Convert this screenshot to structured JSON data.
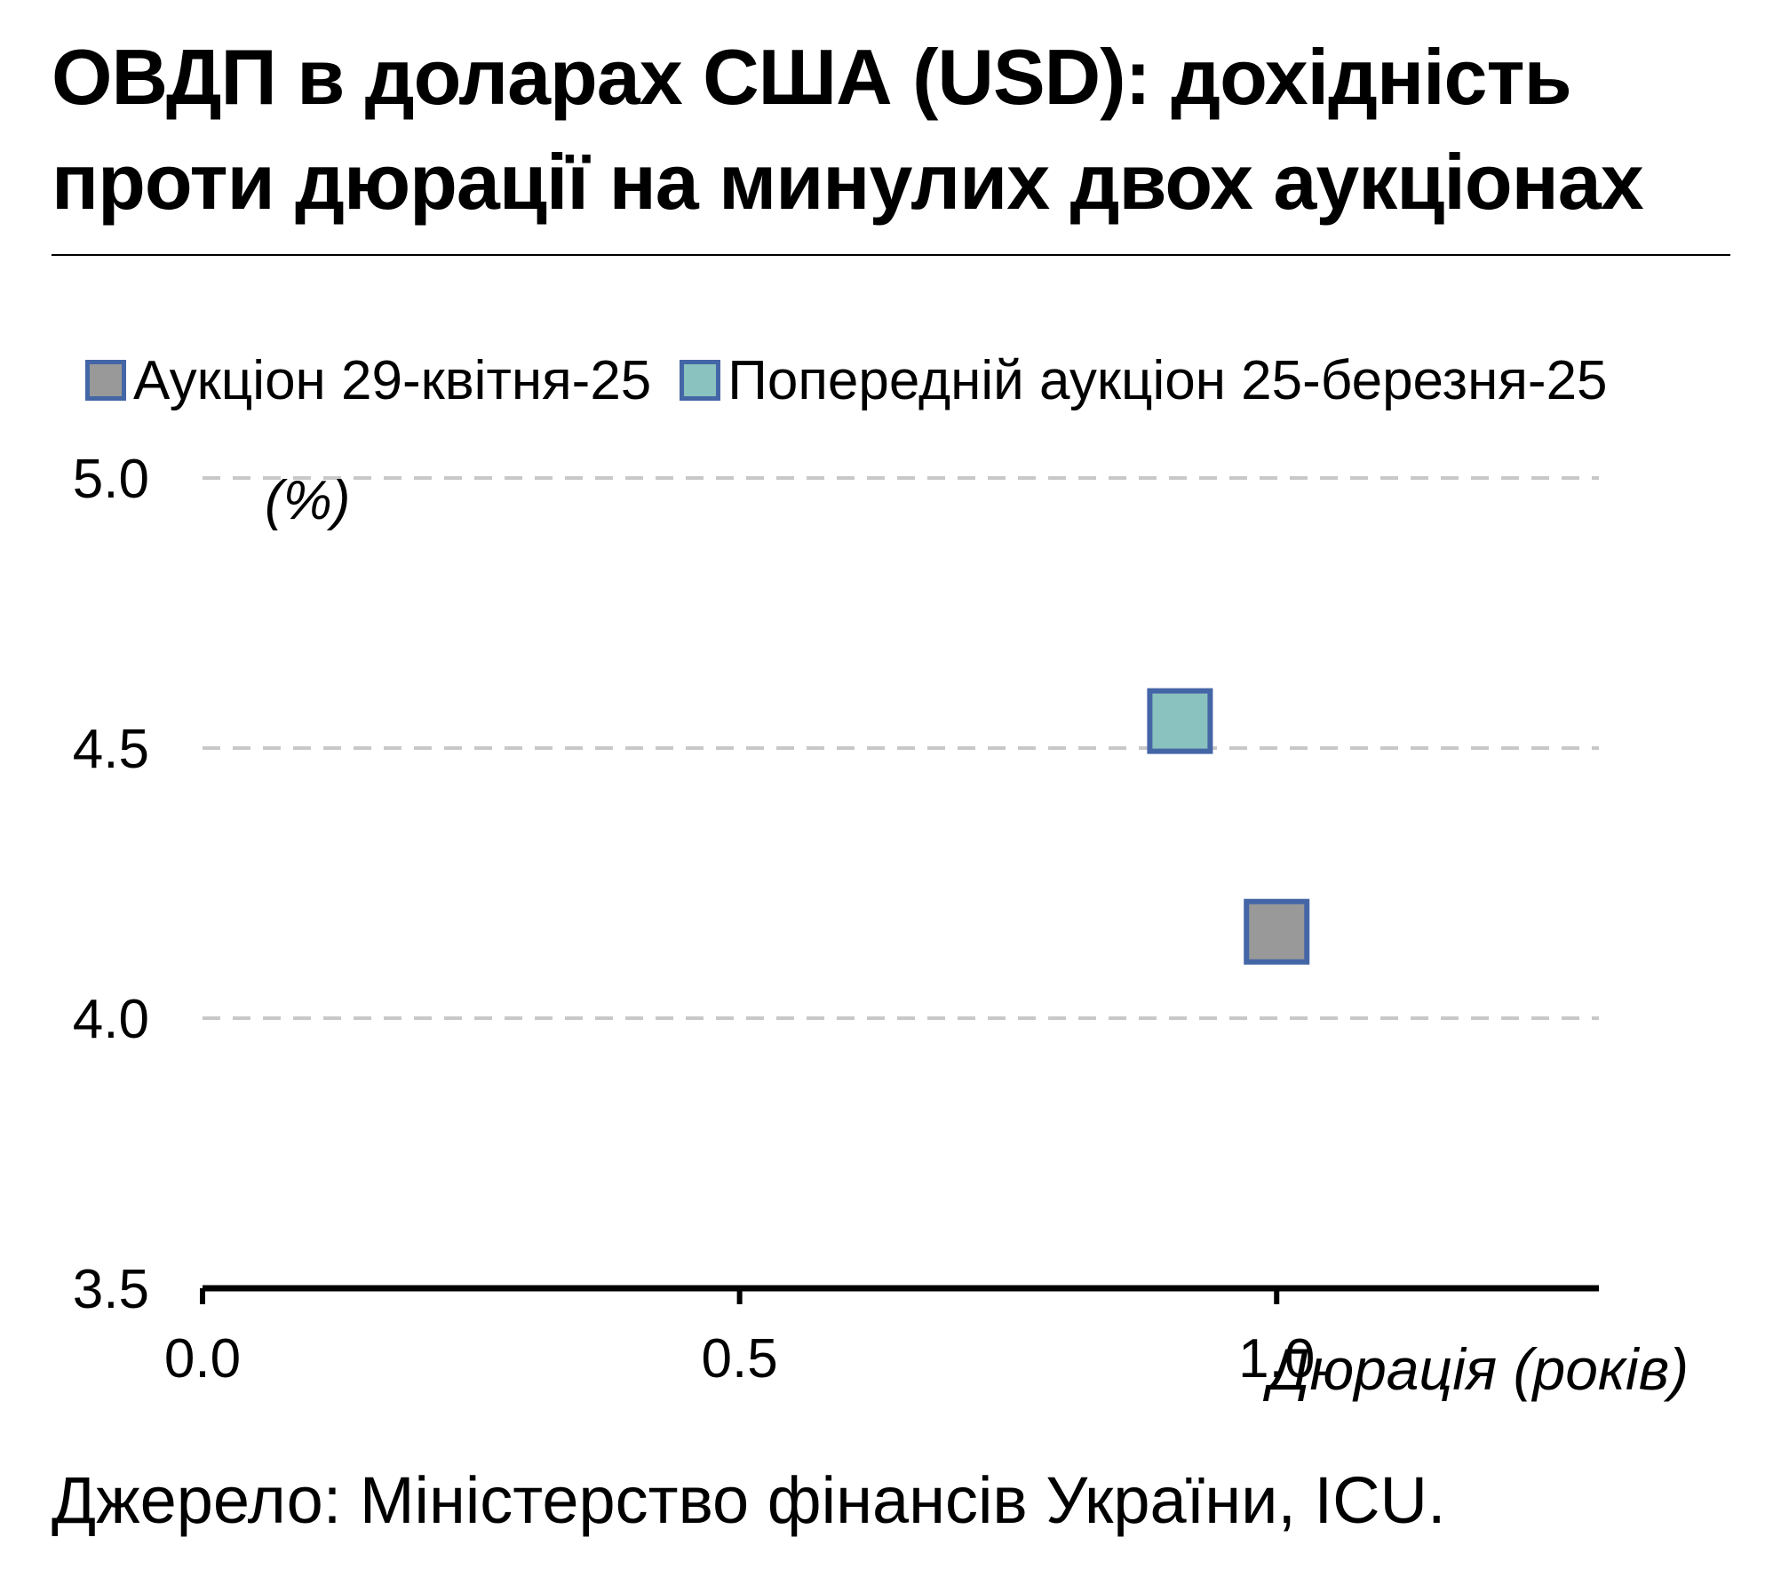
{
  "title_lines": [
    "ОВДП в доларах США (USD): дохідність",
    "проти дюрації на минулих двох аукціонах"
  ],
  "source": "Джерело: Міністерство фінансів України, ICU.",
  "colors": {
    "marker_border": "#4466a6",
    "gridline": "#c8c8c8",
    "axis": "#000000"
  },
  "chart_data": {
    "type": "scatter",
    "xlabel": "Дюрація (років)",
    "ylabel": "(%)",
    "xlim": [
      0.0,
      1.3
    ],
    "ylim": [
      3.5,
      5.0
    ],
    "x_ticks": [
      "0.0",
      "0.5",
      "1.0"
    ],
    "y_ticks": [
      "5.0",
      "4.5",
      "4.0",
      "3.5"
    ],
    "grid": "horizontal dashed",
    "legend_position": "top",
    "series": [
      {
        "name": "Аукціон 29-квітня-25",
        "color": "#999999",
        "points": [
          {
            "x": 1.0,
            "y": 4.16
          }
        ]
      },
      {
        "name": "Попередній аукціон 25-березня-25",
        "color": "#89c2be",
        "points": [
          {
            "x": 0.91,
            "y": 4.55
          }
        ]
      }
    ]
  }
}
